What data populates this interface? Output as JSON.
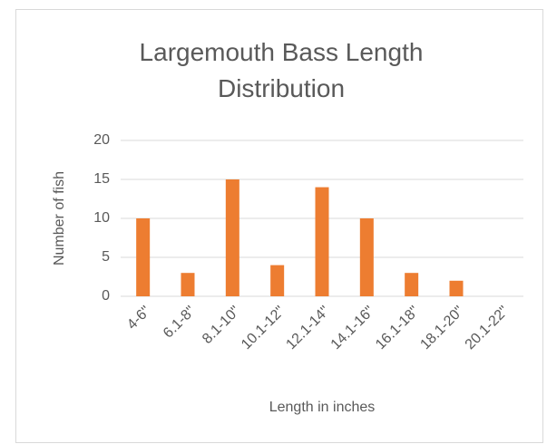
{
  "chart_data": {
    "type": "bar",
    "title": "Largemouth Bass Length Distribution",
    "categories": [
      "4-6\"",
      "6.1-8\"",
      "8.1-10\"",
      "10.1-12\"",
      "12.1-14\"",
      "14.1-16\"",
      "16.1-18\"",
      "18.1-20\"",
      "20.1-22\""
    ],
    "values": [
      10,
      3,
      15,
      4,
      14,
      10,
      3,
      2,
      0
    ],
    "color": "#ed7d31",
    "x_label": "Length in inches",
    "y_label": "Number of fish",
    "ylim": [
      0,
      20
    ],
    "yticks": [
      0,
      5,
      10,
      15,
      20
    ],
    "grid": true
  }
}
